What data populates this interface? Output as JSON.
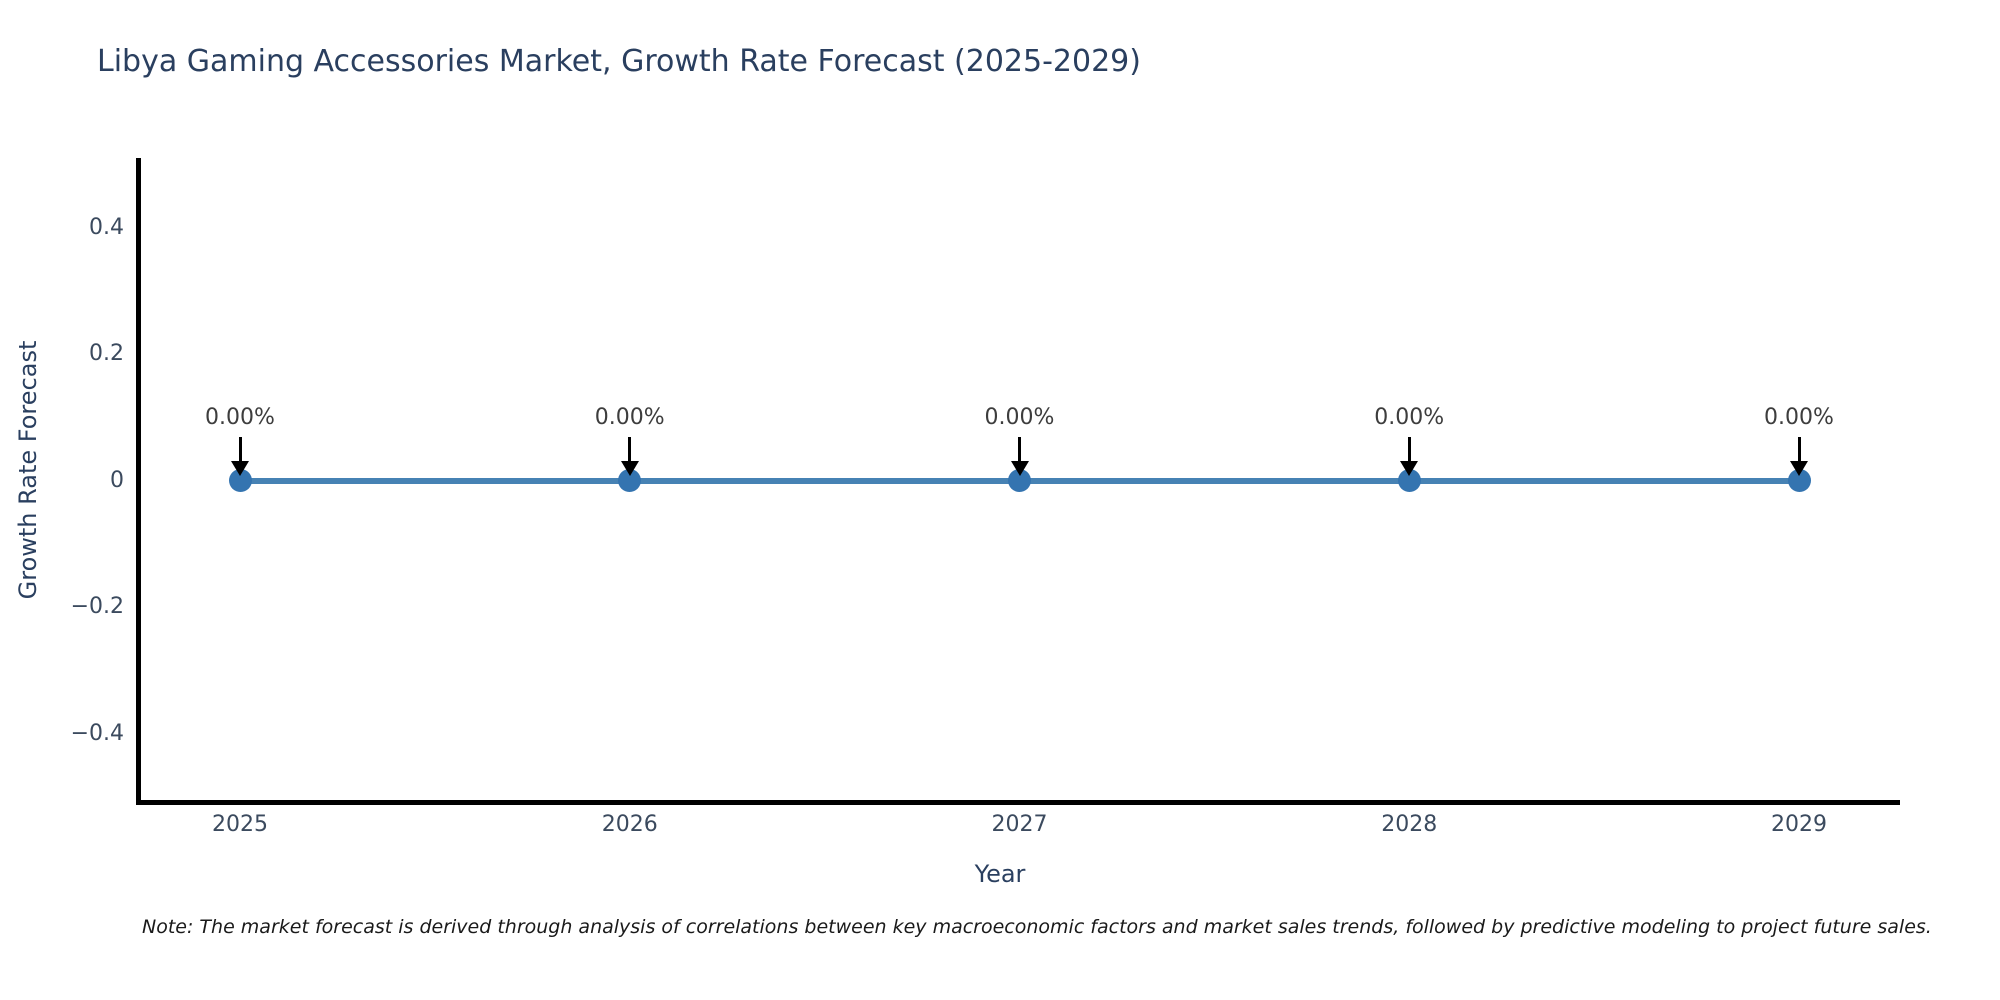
{
  "chart_data": {
    "type": "line",
    "title": "Libya Gaming Accessories Market, Growth Rate Forecast (2025-2029)",
    "xlabel": "Year",
    "ylabel": "Growth Rate Forecast",
    "x": [
      2025,
      2026,
      2027,
      2028,
      2029
    ],
    "series": [
      {
        "name": "Growth Rate Forecast",
        "values": [
          0,
          0,
          0,
          0,
          0
        ],
        "point_labels": [
          "0.00%",
          "0.00%",
          "0.00%",
          "0.00%",
          "0.00%"
        ]
      }
    ],
    "xtick_labels": [
      "2025",
      "2026",
      "2027",
      "2028",
      "2029"
    ],
    "ytick_labels": [
      "0.4",
      "0.2",
      "0",
      "−0.2",
      "−0.4"
    ],
    "ytick_values": [
      0.4,
      0.2,
      0,
      -0.2,
      -0.4
    ],
    "xlim": [
      2024.73,
      2029.26
    ],
    "ylim": [
      -0.51,
      0.51
    ],
    "grid": false,
    "legend": "none",
    "colors": {
      "line": "#4682b4",
      "marker": "#3474b0",
      "arrow": "#000000",
      "axis": "#000000",
      "title_text": "#2a3f5f",
      "tick_text": "#3b4a5e",
      "annotation_text": "#3d3d3d"
    },
    "note": "Note: The market forecast is derived through analysis of correlations between key macroeconomic factors and market sales trends, followed by predictive modeling to project future sales."
  }
}
